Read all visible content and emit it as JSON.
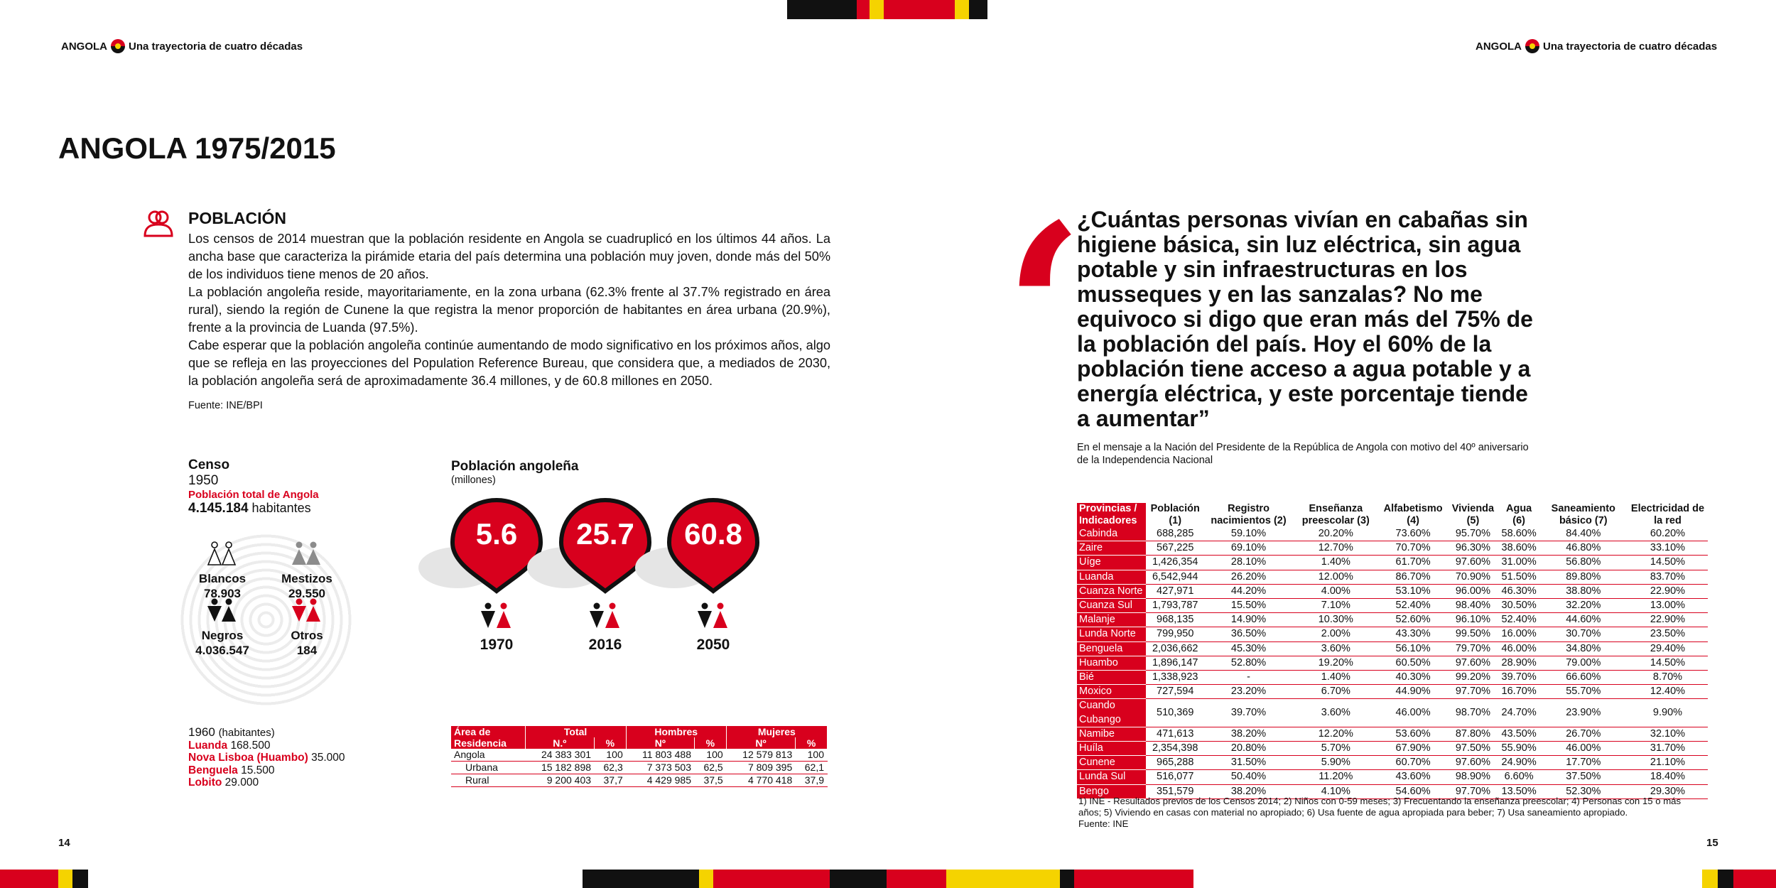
{
  "header": {
    "country": "ANGOLA",
    "subtitle": "Una trayectoria de cuatro décadas"
  },
  "colors": {
    "red": "#d8001d",
    "black": "#111111",
    "yellow": "#f5d300",
    "gray": "#8c8c8c"
  },
  "left": {
    "title": "ANGOLA 1975/2015",
    "section": {
      "icon": "people-icon",
      "heading": "POBLACIÓN",
      "paragraphs": [
        "Los censos de 2014 muestran que la población residente en Angola se cuadruplicó en los últimos 44 años. La ancha base que caracteriza la pirámide etaria del país determina una población muy joven, donde más del 50% de los individuos tiene menos de 20 años.",
        "La población angoleña reside, mayoritariamente, en la zona urbana (62.3% frente al 37.7% registrado en área rural), siendo la región de Cunene la que registra la menor proporción de habitantes en área urbana (20.9%), frente a la provincia de Luanda (97.5%).",
        "Cabe esperar que la población angoleña continúe aumentando de modo significativo en los próximos años, algo que se refleja en las proyecciones del Population Reference Bureau, que considera que, a mediados de 2030, la población angoleña será de aproximadamente 36.4 millones, y de 60.8 millones en 2050."
      ],
      "source": "Fuente: INE/BPI"
    },
    "censo": {
      "heading": "Censo",
      "year": "1950",
      "total_label": "Población total de Angola",
      "total_value": "4.145.184",
      "total_unit": "habitantes",
      "groups": [
        {
          "name": "Blancos",
          "value": "78.903"
        },
        {
          "name": "Mestizos",
          "value": "29.550"
        },
        {
          "name": "Negros",
          "value": "4.036.547"
        },
        {
          "name": "Otros",
          "value": "184"
        }
      ]
    },
    "census_1960": {
      "year": "1960",
      "unit": "(habitantes)",
      "cities": [
        {
          "name": "Luanda",
          "value": "168.500"
        },
        {
          "name": "Nova Lisboa (Huambo)",
          "value": "35.000"
        },
        {
          "name": "Benguela",
          "value": "15.500"
        },
        {
          "name": "Lobito",
          "value": "29.000"
        }
      ]
    },
    "population": {
      "title": "Población angoleña",
      "subtitle": "(millones)",
      "pins": [
        {
          "value": "5.6",
          "year": "1970"
        },
        {
          "value": "25.7",
          "year": "2016"
        },
        {
          "value": "60.8",
          "year": "2050"
        }
      ]
    },
    "area_table": {
      "header_top": [
        "Área de Residencia",
        "Total",
        "Hombres",
        "Mujeres"
      ],
      "header_sub": [
        "N.º",
        "%",
        "Nº",
        "%",
        "Nº",
        "%"
      ],
      "rows": [
        [
          "Angola",
          "24 383 301",
          "100",
          "11 803 488",
          "100",
          "12 579 813",
          "100"
        ],
        [
          "Urbana",
          "15 182 898",
          "62,3",
          "7 373 503",
          "62,5",
          "7 809 395",
          "62,1"
        ],
        [
          "Rural",
          "9 200 403",
          "37,7",
          "4 429 985",
          "37,5",
          "4 770 418",
          "37,9"
        ]
      ]
    },
    "page_number": "14"
  },
  "right": {
    "quote": "¿Cuántas personas vivían en cabañas sin higiene básica, sin luz eléctrica, sin agua potable y sin infraestructuras en los musseques y en las sanzalas? No me equivoco si digo que eran más del 75% de la población del país. Hoy el 60% de la población tiene acceso a agua potable y a energía eléctrica, y este porcentaje tiende a aumentar”",
    "quote_source": "En el mensaje a la Nación del Presidente de la República de Angola con motivo del 40º aniversario de la Independencia Nacional",
    "province_table": {
      "headers": [
        "Provincias / Indicadores",
        "Población (1)",
        "Registro nacimientos (2)",
        "Enseñanza preescolar (3)",
        "Alfabetismo (4)",
        "Vivienda (5)",
        "Agua (6)",
        "Saneamiento básico (7)",
        "Electricidad de la red"
      ],
      "rows": [
        [
          "Cabinda",
          "688,285",
          "59.10%",
          "20.20%",
          "73.60%",
          "95.70%",
          "58.60%",
          "84.40%",
          "60.20%"
        ],
        [
          "Zaire",
          "567,225",
          "69.10%",
          "12.70%",
          "70.70%",
          "96.30%",
          "38.60%",
          "46.80%",
          "33.10%"
        ],
        [
          "Uíge",
          "1,426,354",
          "28.10%",
          "1.40%",
          "61.70%",
          "97.60%",
          "31.00%",
          "56.80%",
          "14.50%"
        ],
        [
          "Luanda",
          "6,542,944",
          "26.20%",
          "12.00%",
          "86.70%",
          "70.90%",
          "51.50%",
          "89.80%",
          "83.70%"
        ],
        [
          "Cuanza Norte",
          "427,971",
          "44.20%",
          "4.00%",
          "53.10%",
          "96.00%",
          "46.30%",
          "38.80%",
          "22.90%"
        ],
        [
          "Cuanza Sul",
          "1,793,787",
          "15.50%",
          "7.10%",
          "52.40%",
          "98.40%",
          "30.50%",
          "32.20%",
          "13.00%"
        ],
        [
          "Malanje",
          "968,135",
          "14.90%",
          "10.30%",
          "52.60%",
          "96.10%",
          "52.40%",
          "44.60%",
          "22.90%"
        ],
        [
          "Lunda Norte",
          "799,950",
          "36.50%",
          "2.00%",
          "43.30%",
          "99.50%",
          "16.00%",
          "30.70%",
          "23.50%"
        ],
        [
          "Benguela",
          "2,036,662",
          "45.30%",
          "3.60%",
          "56.10%",
          "79.70%",
          "46.00%",
          "34.80%",
          "29.40%"
        ],
        [
          "Huambo",
          "1,896,147",
          "52.80%",
          "19.20%",
          "60.50%",
          "97.60%",
          "28.90%",
          "79.00%",
          "14.50%"
        ],
        [
          "Bié",
          "1,338,923",
          "-",
          "1.40%",
          "40.30%",
          "99.20%",
          "39.70%",
          "66.60%",
          "8.70%"
        ],
        [
          "Moxico",
          "727,594",
          "23.20%",
          "6.70%",
          "44.90%",
          "97.70%",
          "16.70%",
          "55.70%",
          "12.40%"
        ],
        [
          "Cuando Cubango",
          "510,369",
          "39.70%",
          "3.60%",
          "46.00%",
          "98.70%",
          "24.70%",
          "23.90%",
          "9.90%"
        ],
        [
          "Namibe",
          "471,613",
          "38.20%",
          "12.20%",
          "53.60%",
          "87.80%",
          "43.50%",
          "26.70%",
          "32.10%"
        ],
        [
          "Huíla",
          "2,354,398",
          "20.80%",
          "5.70%",
          "67.90%",
          "97.50%",
          "55.90%",
          "46.00%",
          "31.70%"
        ],
        [
          "Cunene",
          "965,288",
          "31.50%",
          "5.90%",
          "60.70%",
          "97.60%",
          "24.90%",
          "17.70%",
          "21.10%"
        ],
        [
          "Lunda Sul",
          "516,077",
          "50.40%",
          "11.20%",
          "43.60%",
          "98.90%",
          "6.60%",
          "37.50%",
          "18.40%"
        ],
        [
          "Bengo",
          "351,579",
          "38.20%",
          "4.10%",
          "54.60%",
          "97.70%",
          "13.50%",
          "52.30%",
          "29.30%"
        ]
      ]
    },
    "notes": "1) INE - Resultados previos de los Censos 2014; 2) Niños con 0-59 meses; 3) Frecuentando la enseñanza preescolar; 4) Personas con 15 o más años; 5) Viviendo en casas con material no apropiado; 6) Usa fuente de agua apropiada para beber; 7) Usa saneamiento apropiado.",
    "source": "Fuente: INE",
    "page_number": "15"
  }
}
